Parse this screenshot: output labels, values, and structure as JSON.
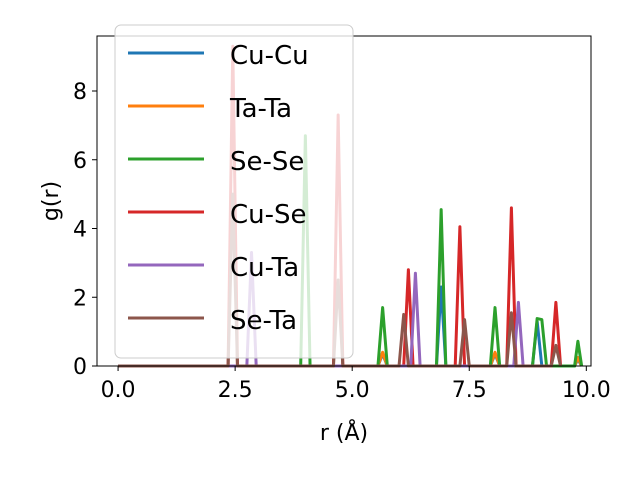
{
  "chart_data": {
    "type": "line",
    "xlabel": "r (Å)",
    "ylabel": "g(r)",
    "xlim": [
      -0.45,
      10.1
    ],
    "ylim": [
      0,
      9.6
    ],
    "xticks": [
      0.0,
      2.5,
      5.0,
      7.5,
      10.0
    ],
    "xtick_labels": [
      "0.0",
      "2.5",
      "5.0",
      "7.5",
      "10.0"
    ],
    "yticks": [
      0,
      2,
      4,
      6,
      8
    ],
    "ytick_labels": [
      "0",
      "2",
      "4",
      "6",
      "8"
    ],
    "grid": false,
    "legend_position": "upper-left",
    "series": [
      {
        "name": "Cu-Cu",
        "color": "#1f77b4",
        "points": [
          [
            0,
            0
          ],
          [
            5.55,
            0
          ],
          [
            5.65,
            0.35
          ],
          [
            5.75,
            0
          ],
          [
            6.8,
            0
          ],
          [
            6.9,
            2.3
          ],
          [
            7.0,
            0
          ],
          [
            7.95,
            0
          ],
          [
            8.05,
            0.35
          ],
          [
            8.15,
            0
          ],
          [
            8.85,
            0
          ],
          [
            8.95,
            1.3
          ],
          [
            9.05,
            0
          ],
          [
            9.75,
            0
          ],
          [
            9.82,
            0.2
          ],
          [
            9.9,
            0
          ]
        ]
      },
      {
        "name": "Ta-Ta",
        "color": "#ff7f0e",
        "points": [
          [
            0,
            0
          ],
          [
            5.55,
            0
          ],
          [
            5.65,
            0.4
          ],
          [
            5.75,
            0
          ],
          [
            7.95,
            0
          ],
          [
            8.05,
            0.4
          ],
          [
            8.15,
            0
          ],
          [
            9.75,
            0
          ],
          [
            9.82,
            0.25
          ],
          [
            9.9,
            0
          ]
        ]
      },
      {
        "name": "Se-Se",
        "color": "#2ca02c",
        "points": [
          [
            0,
            0
          ],
          [
            3.9,
            0
          ],
          [
            4.0,
            6.7
          ],
          [
            4.1,
            0
          ],
          [
            5.55,
            0
          ],
          [
            5.65,
            1.7
          ],
          [
            5.75,
            0
          ],
          [
            6.8,
            0
          ],
          [
            6.9,
            4.55
          ],
          [
            7.0,
            0
          ],
          [
            7.95,
            0
          ],
          [
            8.05,
            1.7
          ],
          [
            8.15,
            0
          ],
          [
            8.85,
            0
          ],
          [
            8.95,
            1.38
          ],
          [
            9.05,
            1.35
          ],
          [
            9.15,
            0
          ],
          [
            9.75,
            0
          ],
          [
            9.82,
            0.72
          ],
          [
            9.9,
            0
          ]
        ]
      },
      {
        "name": "Cu-Se",
        "color": "#d62728",
        "points": [
          [
            0,
            0
          ],
          [
            2.35,
            0
          ],
          [
            2.45,
            9.3
          ],
          [
            2.55,
            0
          ],
          [
            4.6,
            0
          ],
          [
            4.7,
            7.3
          ],
          [
            4.8,
            0
          ],
          [
            6.1,
            0
          ],
          [
            6.2,
            2.8
          ],
          [
            6.3,
            0
          ],
          [
            7.2,
            0
          ],
          [
            7.3,
            4.05
          ],
          [
            7.4,
            0
          ],
          [
            8.3,
            0
          ],
          [
            8.4,
            4.6
          ],
          [
            8.5,
            0
          ],
          [
            9.25,
            0
          ],
          [
            9.35,
            1.85
          ],
          [
            9.45,
            0
          ]
        ]
      },
      {
        "name": "Cu-Ta",
        "color": "#9467bd",
        "points": [
          [
            0,
            0
          ],
          [
            2.75,
            0
          ],
          [
            2.85,
            3.3
          ],
          [
            2.95,
            0
          ],
          [
            6.25,
            0
          ],
          [
            6.35,
            2.7
          ],
          [
            6.45,
            0
          ],
          [
            8.45,
            0
          ],
          [
            8.55,
            1.85
          ],
          [
            8.65,
            0
          ]
        ]
      },
      {
        "name": "Se-Ta",
        "color": "#8c564b",
        "points": [
          [
            0,
            0
          ],
          [
            2.35,
            0
          ],
          [
            2.45,
            5.0
          ],
          [
            2.55,
            0
          ],
          [
            4.6,
            0
          ],
          [
            4.7,
            2.5
          ],
          [
            4.8,
            0
          ],
          [
            6.0,
            0
          ],
          [
            6.1,
            1.5
          ],
          [
            6.2,
            0
          ],
          [
            7.3,
            0
          ],
          [
            7.4,
            1.35
          ],
          [
            7.5,
            0
          ],
          [
            8.3,
            0
          ],
          [
            8.4,
            1.55
          ],
          [
            8.5,
            0
          ],
          [
            9.25,
            0
          ],
          [
            9.35,
            0.6
          ],
          [
            9.45,
            0
          ]
        ]
      }
    ]
  }
}
